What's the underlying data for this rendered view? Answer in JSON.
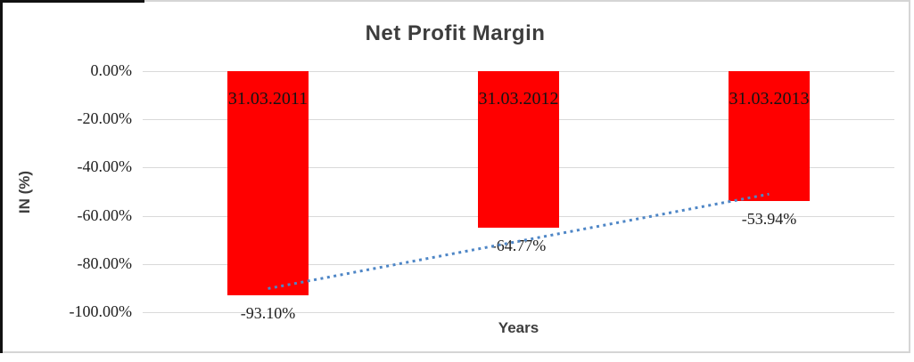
{
  "chart_data": {
    "type": "bar",
    "title": "Net Profit Margin",
    "xlabel": "Years",
    "ylabel": "IN (%)",
    "categories": [
      "31.03.2011",
      "31.03.2012",
      "31.03.2013"
    ],
    "values": [
      -93.1,
      -64.77,
      -53.94
    ],
    "value_labels": [
      "-93.10%",
      "-64.77%",
      "-53.94%"
    ],
    "ylim": [
      -100,
      0
    ],
    "ytick_labels": [
      "0.00%",
      "-20.00%",
      "-40.00%",
      "-60.00%",
      "-80.00%",
      "-100.00%"
    ],
    "ytick_values": [
      0,
      -20,
      -40,
      -60,
      -80,
      -100
    ],
    "grid": true,
    "legend": "none",
    "trendline": {
      "style": "dotted",
      "start_value": -90.2,
      "end_value": -51.0
    }
  },
  "colors": {
    "bar": "#ff0000",
    "trendline": "#4e86c6",
    "gridline": "#d9d9d9",
    "heading_text": "#3d3d3d",
    "label_text": "#1f1f1f",
    "frame": "#d5d5d5"
  }
}
